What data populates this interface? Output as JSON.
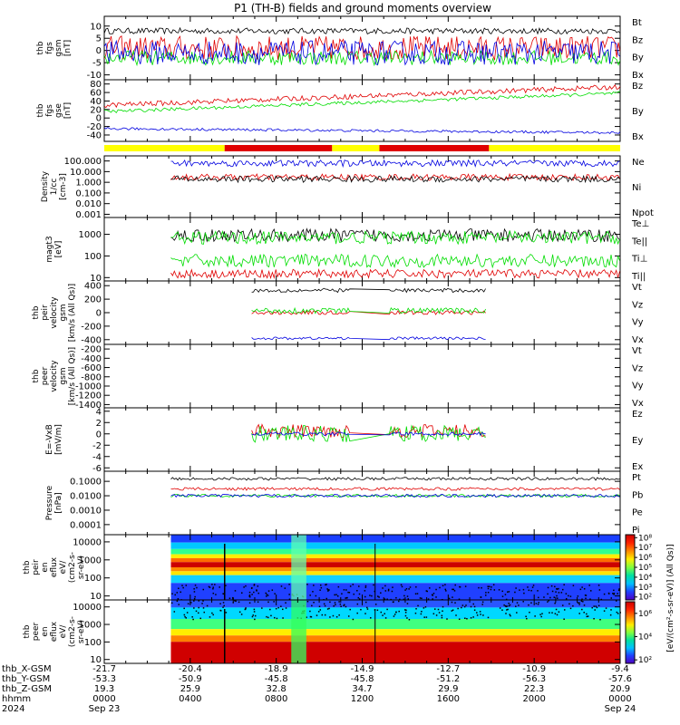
{
  "title": "P1 (TH-B) fields and ground moments overview",
  "colors": {
    "black": "#000000",
    "red": "#e00000",
    "green": "#00dd00",
    "blue": "#0000e0",
    "yellow": "#ffff00"
  },
  "chart_data": [
    {
      "type": "line",
      "ylabel": [
        "thb",
        "fgs",
        "gsm",
        "[nT]"
      ],
      "yticks": [
        "10",
        "5",
        "0",
        "-5",
        "-10"
      ],
      "tick_values": [
        10,
        5,
        0,
        -5,
        -10
      ],
      "ylim": [
        -12,
        14
      ],
      "legend": [
        {
          "name": "Bt",
          "color": "#000000"
        },
        {
          "name": "Bz",
          "color": "#e00000"
        },
        {
          "name": "By",
          "color": "#00dd00"
        },
        {
          "name": "Bx",
          "color": "#0000e0"
        }
      ]
    },
    {
      "type": "line",
      "ylabel": [
        "thb",
        "fgs",
        "gse",
        "[nT]"
      ],
      "yticks": [
        "80",
        "60",
        "40",
        "20",
        "0",
        "-20",
        "-40"
      ],
      "tick_values": [
        80,
        60,
        40,
        20,
        0,
        -20,
        -40
      ],
      "ylim": [
        -55,
        90
      ],
      "legend": [
        {
          "name": "Bz",
          "color": "#e00000"
        },
        {
          "name": "By",
          "color": "#00dd00"
        },
        {
          "name": "Bx",
          "color": "#0000e0"
        }
      ]
    },
    {
      "type": "line",
      "ylabel": [
        "Density",
        "1/cc",
        "[cm-3]"
      ],
      "yticks": [
        "100.000",
        "10.000",
        "1.000",
        "0.100",
        "0.010",
        "0.001"
      ],
      "tick_values": [
        100,
        10,
        1,
        0.1,
        0.01,
        0.001
      ],
      "ylim": [
        0.0005,
        300
      ],
      "log": true,
      "legend": [
        {
          "name": "Ne",
          "color": "#e00000"
        },
        {
          "name": "Ni",
          "color": "#000000"
        },
        {
          "name": "Npot",
          "color": "#0000e0"
        }
      ]
    },
    {
      "type": "line",
      "ylabel": [
        "magt3",
        "[eV]"
      ],
      "yticks": [
        "1000",
        "100",
        "10"
      ],
      "tick_values": [
        1000,
        100,
        10
      ],
      "ylim": [
        7,
        6000
      ],
      "log": true,
      "legend": [
        {
          "name": "Te⊥",
          "color": "#e00000"
        },
        {
          "name": "Te||",
          "color": "#000000"
        },
        {
          "name": "Ti⊥",
          "color": "#00dd00"
        },
        {
          "name": "Ti||",
          "color": "#00dd00"
        }
      ]
    },
    {
      "type": "line",
      "ylabel": [
        "thb",
        "peir",
        "velocity",
        "gsm",
        "[km/s (All Qs)]"
      ],
      "yticks": [
        "400",
        "200",
        "0",
        "-200",
        "-400"
      ],
      "tick_values": [
        400,
        200,
        0,
        -200,
        -400
      ],
      "ylim": [
        -470,
        470
      ],
      "legend": [
        {
          "name": "Vt",
          "color": "#000000"
        },
        {
          "name": "Vz",
          "color": "#e00000"
        },
        {
          "name": "Vy",
          "color": "#00dd00"
        },
        {
          "name": "Vx",
          "color": "#0000e0"
        }
      ]
    },
    {
      "type": "line",
      "ylabel": [
        "thb",
        "peer",
        "velocity",
        "gsm",
        "[km/s (All Qs)]"
      ],
      "yticks": [
        "-200",
        "-400",
        "-600",
        "-800",
        "-1000",
        "-1200",
        "-1400"
      ],
      "tick_values": [
        -200,
        -400,
        -600,
        -800,
        -1000,
        -1200,
        -1400
      ],
      "ylim": [
        -1470,
        -100
      ],
      "legend": [
        {
          "name": "Vt",
          "color": "#000000"
        },
        {
          "name": "Vz",
          "color": "#e00000"
        },
        {
          "name": "Vy",
          "color": "#00dd00"
        },
        {
          "name": "Vx",
          "color": "#0000e0"
        }
      ]
    },
    {
      "type": "line",
      "ylabel": [
        "E=-VxB",
        "[mV/m]"
      ],
      "yticks": [
        "4",
        "2",
        "0",
        "-2",
        "-4",
        "-6"
      ],
      "tick_values": [
        4,
        2,
        0,
        -2,
        -4,
        -6
      ],
      "ylim": [
        -6.6,
        4.6
      ],
      "legend": [
        {
          "name": "Ez",
          "color": "#e00000"
        },
        {
          "name": "Ey",
          "color": "#00dd00"
        },
        {
          "name": "Ex",
          "color": "#0000e0"
        }
      ]
    },
    {
      "type": "line",
      "ylabel": [
        "Pressure",
        "[nPa]"
      ],
      "yticks": [
        "0.1000",
        "0.0100",
        "0.0010",
        "0.0001"
      ],
      "tick_values": [
        0.1,
        0.01,
        0.001,
        0.0001
      ],
      "ylim": [
        2e-05,
        0.5
      ],
      "log": true,
      "legend": [
        {
          "name": "Pt",
          "color": "#000000"
        },
        {
          "name": "Pb",
          "color": "#e00000"
        },
        {
          "name": "Pe",
          "color": "#00dd00"
        },
        {
          "name": "Pi",
          "color": "#0000e0"
        }
      ]
    },
    {
      "type": "heatmap",
      "ylabel": [
        "thb",
        "peir",
        "en",
        "eflux",
        "eV/",
        "(cm2-s-",
        "sr-eV)"
      ],
      "yticks": [
        "10000",
        "1000",
        "100",
        "10"
      ],
      "tick_values": [
        10000,
        1000,
        100,
        10
      ],
      "ylim": [
        6,
        25000
      ],
      "log": true
    },
    {
      "type": "heatmap",
      "ylabel": [
        "thb",
        "peer",
        "en",
        "eflux",
        "eV/",
        "(cm2-s-",
        "sr-eV)"
      ],
      "yticks": [
        "10000",
        "1000",
        "100",
        "10"
      ],
      "tick_values": [
        10000,
        1000,
        100,
        10
      ],
      "ylim": [
        6,
        25000
      ],
      "log": true
    }
  ],
  "colorbar1": {
    "labels": [
      "10⁸",
      "10⁷",
      "10⁶",
      "10⁵",
      "10⁴",
      "10³",
      "10²"
    ],
    "label_values": [
      100000000,
      10000000,
      1000000,
      100000,
      10000,
      1000,
      100
    ],
    "range": [
      50,
      200000000
    ]
  },
  "colorbar2": {
    "labels": [
      "10⁶",
      "10⁴",
      "10²"
    ],
    "label_values": [
      1000000,
      10000,
      100
    ],
    "range": [
      50,
      10000000
    ]
  },
  "colorbar_unit": "[eV/(cm²-s-sr-eV)] (All Qs)]",
  "xaxis": {
    "row_labels": [
      "thb_X-GSM",
      "thb_Y-GSM",
      "thb_Z-GSM",
      "hhmm",
      "2024"
    ],
    "hours": [
      0,
      4,
      8,
      12,
      16,
      20,
      24
    ],
    "x_range": [
      0,
      24
    ],
    "minor_step": 1,
    "columns": [
      [
        "-21.7",
        "-53.3",
        "19.3",
        "0000",
        "Sep 23"
      ],
      [
        "-20.4",
        "-50.9",
        "25.9",
        "0400",
        ""
      ],
      [
        "-18.9",
        "-45.8",
        "32.8",
        "0800",
        ""
      ],
      [
        "-14.9",
        "-45.8",
        "34.7",
        "1200",
        ""
      ],
      [
        "-12.7",
        "-51.2",
        "29.9",
        "1600",
        ""
      ],
      [
        "-10.9",
        "-56.3",
        "22.3",
        "2000",
        ""
      ],
      [
        "-9.4",
        "-57.6",
        "20.9",
        "0000",
        "Sep 24"
      ]
    ]
  },
  "mode_bar": [
    {
      "from": 0,
      "to": 5.6,
      "color": "#ffff00"
    },
    {
      "from": 5.6,
      "to": 10.6,
      "color": "#e00000"
    },
    {
      "from": 10.6,
      "to": 12.8,
      "color": "#ffff00"
    },
    {
      "from": 12.8,
      "to": 17.9,
      "color": "#e00000"
    },
    {
      "from": 17.9,
      "to": 24,
      "color": "#ffff00"
    }
  ]
}
